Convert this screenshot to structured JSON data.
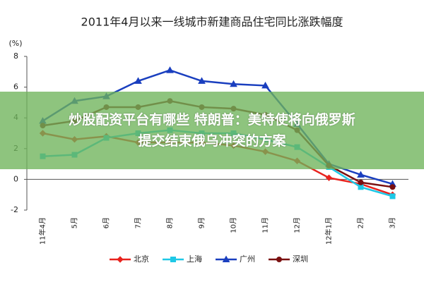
{
  "chart_data": {
    "type": "line",
    "title": "2011年4月以来一线城市新建商品住宅同比涨跌幅度",
    "y_label": "(%)",
    "categories": [
      "11年4月",
      "5月",
      "6月",
      "7月",
      "8月",
      "9月",
      "10月",
      "11月",
      "12月",
      "12年1月",
      "2月",
      "3月"
    ],
    "series": [
      {
        "name": "北京",
        "color": "#e8231e",
        "marker": "diamond",
        "values": [
          3.0,
          2.6,
          2.8,
          2.4,
          2.4,
          2.4,
          2.2,
          1.8,
          1.2,
          0.1,
          -0.3,
          -1.0
        ]
      },
      {
        "name": "上海",
        "color": "#1ec8e6",
        "marker": "square",
        "values": [
          1.5,
          1.6,
          2.7,
          3.0,
          3.2,
          3.0,
          3.0,
          2.6,
          2.1,
          0.8,
          -0.5,
          -1.1
        ]
      },
      {
        "name": "广州",
        "color": "#1a3fbf",
        "marker": "triangle",
        "values": [
          3.8,
          5.1,
          5.4,
          6.4,
          7.1,
          6.4,
          6.2,
          6.1,
          3.6,
          1.0,
          0.3,
          -0.3
        ]
      },
      {
        "name": "深圳",
        "color": "#7a1010",
        "marker": "circle",
        "values": [
          3.5,
          3.8,
          4.7,
          4.7,
          5.1,
          4.7,
          4.6,
          4.2,
          3.2,
          0.9,
          -0.2,
          -0.5
        ]
      }
    ],
    "ylim": [
      -2,
      8
    ],
    "yticks": [
      -2,
      0,
      2,
      4,
      6,
      8
    ],
    "grid": false,
    "legend": "bottom"
  },
  "banner": {
    "lines": [
      "炒股配资平台有哪些 特朗普：美特使将向俄罗斯",
      "提交结束俄乌冲突的方案"
    ]
  }
}
